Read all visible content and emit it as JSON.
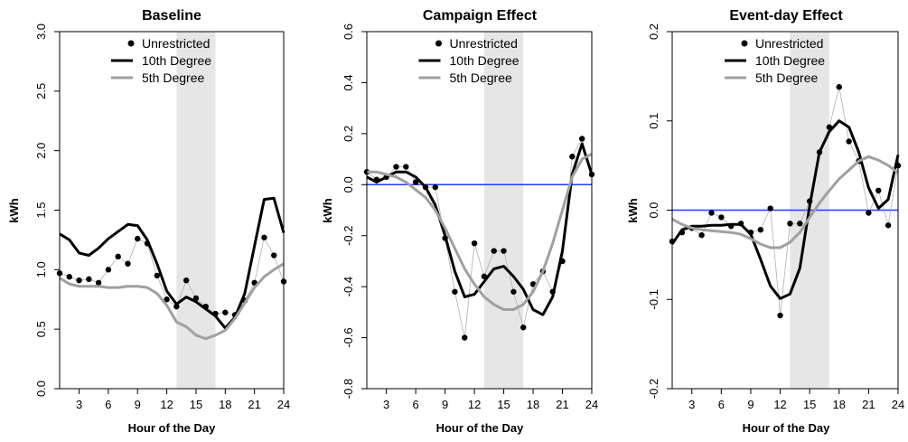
{
  "chart_data": [
    {
      "type": "line",
      "title": "Baseline",
      "xlabel": "Hour of the Day",
      "ylabel": "kWh",
      "xlim": [
        1,
        24
      ],
      "ylim": [
        0,
        3
      ],
      "xticks": [
        3,
        6,
        9,
        12,
        15,
        18,
        21,
        24
      ],
      "xtick_labels": [
        "3",
        "6",
        "9",
        "12",
        "15",
        "18",
        "21",
        "24"
      ],
      "yticks": [
        0,
        0.5,
        1,
        1.5,
        2,
        2.5,
        3
      ],
      "ytick_labels": [
        "0.0",
        "0.5",
        "1.0",
        "1.5",
        "2.0",
        "2.5",
        "3.0"
      ],
      "shaded_band": [
        13,
        17
      ],
      "reference_line": null,
      "legend": {
        "position": "top-center",
        "entries": [
          "Unrestricted",
          "10th Degree",
          "5th Degree"
        ]
      },
      "x": [
        1,
        2,
        3,
        4,
        5,
        6,
        7,
        8,
        9,
        10,
        11,
        12,
        13,
        14,
        15,
        16,
        17,
        18,
        19,
        20,
        21,
        22,
        23,
        24
      ],
      "series": [
        {
          "name": "Unrestricted",
          "style": "points",
          "color": "#000000",
          "values": [
            0.97,
            0.94,
            0.91,
            0.92,
            0.89,
            1.0,
            1.11,
            1.05,
            1.26,
            1.22,
            0.95,
            0.75,
            0.69,
            0.91,
            0.76,
            0.69,
            0.63,
            0.64,
            0.62,
            0.74,
            0.89,
            1.27,
            1.12,
            0.9
          ]
        },
        {
          "name": "10th Degree",
          "style": "line",
          "color": "#000000",
          "values": [
            1.3,
            1.25,
            1.14,
            1.12,
            1.18,
            1.26,
            1.32,
            1.38,
            1.37,
            1.25,
            1.05,
            0.82,
            0.71,
            0.77,
            0.73,
            0.67,
            0.61,
            0.51,
            0.6,
            0.8,
            1.2,
            1.59,
            1.6,
            1.31
          ]
        },
        {
          "name": "5th Degree",
          "style": "line",
          "color": "#a0a0a0",
          "values": [
            0.93,
            0.88,
            0.86,
            0.86,
            0.86,
            0.85,
            0.85,
            0.86,
            0.86,
            0.85,
            0.8,
            0.7,
            0.56,
            0.52,
            0.45,
            0.42,
            0.45,
            0.49,
            0.59,
            0.72,
            0.85,
            0.94,
            1.0,
            1.05
          ]
        }
      ]
    },
    {
      "type": "line",
      "title": "Campaign Effect",
      "xlabel": "Hour of the Day",
      "ylabel": "kWh",
      "xlim": [
        1,
        24
      ],
      "ylim": [
        -0.8,
        0.6
      ],
      "xticks": [
        3,
        6,
        9,
        12,
        15,
        18,
        21,
        24
      ],
      "xtick_labels": [
        "3",
        "6",
        "9",
        "12",
        "15",
        "18",
        "21",
        "24"
      ],
      "yticks": [
        -0.8,
        -0.6,
        -0.4,
        -0.2,
        0,
        0.2,
        0.4,
        0.6
      ],
      "ytick_labels": [
        "-0.8",
        "-0.6",
        "-0.4",
        "-0.2",
        "0.0",
        "0.2",
        "0.4",
        "0.6"
      ],
      "shaded_band": [
        13,
        17
      ],
      "reference_line": {
        "y": 0,
        "color": "#1f3cff"
      },
      "legend": {
        "position": "top-center",
        "entries": [
          "Unrestricted",
          "10th Degree",
          "5th Degree"
        ]
      },
      "x": [
        1,
        2,
        3,
        4,
        5,
        6,
        7,
        8,
        9,
        10,
        11,
        12,
        13,
        14,
        15,
        16,
        17,
        18,
        19,
        20,
        21,
        22,
        23,
        24
      ],
      "series": [
        {
          "name": "Unrestricted",
          "style": "points",
          "color": "#000000",
          "values": [
            0.05,
            0.02,
            0.03,
            0.07,
            0.07,
            0.01,
            -0.01,
            -0.01,
            -0.21,
            -0.42,
            -0.6,
            -0.23,
            -0.36,
            -0.26,
            -0.26,
            -0.42,
            -0.56,
            -0.39,
            -0.34,
            -0.42,
            -0.3,
            0.11,
            0.18,
            0.04
          ]
        },
        {
          "name": "10th Degree",
          "style": "line",
          "color": "#000000",
          "values": [
            0.03,
            0.01,
            0.03,
            0.05,
            0.05,
            0.03,
            -0.01,
            -0.08,
            -0.2,
            -0.34,
            -0.44,
            -0.43,
            -0.38,
            -0.33,
            -0.32,
            -0.36,
            -0.41,
            -0.49,
            -0.51,
            -0.44,
            -0.26,
            0.04,
            0.16,
            0.04
          ]
        },
        {
          "name": "5th Degree",
          "style": "line",
          "color": "#a0a0a0",
          "values": [
            0.05,
            0.05,
            0.04,
            0.03,
            0.01,
            -0.02,
            -0.05,
            -0.1,
            -0.17,
            -0.25,
            -0.33,
            -0.39,
            -0.44,
            -0.47,
            -0.49,
            -0.49,
            -0.47,
            -0.42,
            -0.34,
            -0.23,
            -0.1,
            0.03,
            0.1,
            0.12
          ]
        }
      ]
    },
    {
      "type": "line",
      "title": "Event-day Effect",
      "xlabel": "Hour of the Day",
      "ylabel": "kWh",
      "xlim": [
        1,
        24
      ],
      "ylim": [
        -0.2,
        0.2
      ],
      "xticks": [
        3,
        6,
        9,
        12,
        15,
        18,
        21,
        24
      ],
      "xtick_labels": [
        "3",
        "6",
        "9",
        "12",
        "15",
        "18",
        "21",
        "24"
      ],
      "yticks": [
        -0.2,
        -0.1,
        0,
        0.1,
        0.2
      ],
      "ytick_labels": [
        "-0.2",
        "-0.1",
        "0.0",
        "0.1",
        "0.2"
      ],
      "shaded_band": [
        13,
        17
      ],
      "reference_line": {
        "y": 0,
        "color": "#1f3cff"
      },
      "legend": {
        "position": "top-center",
        "entries": [
          "Unrestricted",
          "10th Degree",
          "5th Degree"
        ]
      },
      "x": [
        1,
        2,
        3,
        4,
        5,
        6,
        7,
        8,
        9,
        10,
        11,
        12,
        13,
        14,
        15,
        16,
        17,
        18,
        19,
        20,
        21,
        22,
        23,
        24
      ],
      "series": [
        {
          "name": "Unrestricted",
          "style": "points",
          "color": "#000000",
          "values": [
            -0.035,
            -0.025,
            -0.02,
            -0.028,
            -0.003,
            -0.008,
            -0.018,
            -0.015,
            -0.025,
            -0.022,
            0.002,
            -0.118,
            -0.015,
            -0.015,
            0.01,
            0.065,
            0.093,
            0.138,
            0.077,
            0.055,
            -0.003,
            0.022,
            -0.017,
            0.05
          ]
        },
        {
          "name": "10th Degree",
          "style": "line",
          "color": "#000000",
          "values": [
            -0.038,
            -0.022,
            -0.018,
            -0.018,
            -0.017,
            -0.017,
            -0.016,
            -0.016,
            -0.027,
            -0.055,
            -0.085,
            -0.099,
            -0.094,
            -0.065,
            0.005,
            0.065,
            0.088,
            0.1,
            0.093,
            0.065,
            0.025,
            0.002,
            0.012,
            0.062
          ]
        },
        {
          "name": "5th Degree",
          "style": "line",
          "color": "#a0a0a0",
          "values": [
            -0.01,
            -0.016,
            -0.02,
            -0.022,
            -0.023,
            -0.024,
            -0.025,
            -0.027,
            -0.032,
            -0.038,
            -0.042,
            -0.042,
            -0.036,
            -0.025,
            -0.008,
            0.008,
            0.022,
            0.035,
            0.045,
            0.055,
            0.06,
            0.056,
            0.05,
            0.042
          ]
        }
      ]
    }
  ]
}
